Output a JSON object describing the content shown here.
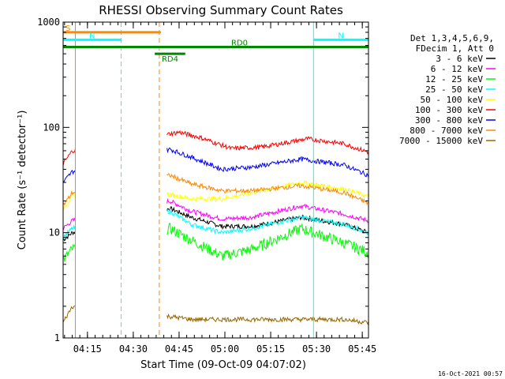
{
  "chart_data": {
    "type": "line",
    "title": "RHESSI Observing Summary Count Rates",
    "xlabel": "Start Time (09-Oct-09 04:07:02)",
    "ylabel": "Count Rate (s⁻¹ detector⁻¹)",
    "y_scale": "log",
    "ylim": [
      1,
      1000
    ],
    "xlim_minutes": [
      0,
      100
    ],
    "x_ticks": [
      {
        "minute": 7.97,
        "label": "04:15"
      },
      {
        "minute": 22.97,
        "label": "04:30"
      },
      {
        "minute": 37.97,
        "label": "04:45"
      },
      {
        "minute": 52.97,
        "label": "05:00"
      },
      {
        "minute": 67.97,
        "label": "05:15"
      },
      {
        "minute": 82.97,
        "label": "05:30"
      },
      {
        "minute": 97.97,
        "label": "05:45"
      }
    ],
    "y_tick_labels": [
      {
        "value": 1,
        "label": "1"
      },
      {
        "value": 10,
        "label": "10"
      },
      {
        "value": 100,
        "label": "100"
      },
      {
        "value": 1000,
        "label": "1000"
      }
    ],
    "legend_header": [
      "Det 1,3,4,5,6,9,",
      "FDecim 1, Att 0"
    ],
    "series": [
      {
        "name": "3 - 6 keV",
        "color": "#000000",
        "values": [
          [
            0,
            8.5
          ],
          [
            3,
            10
          ],
          [
            35,
            17
          ],
          [
            42,
            14
          ],
          [
            52,
            11.5
          ],
          [
            62,
            11.5
          ],
          [
            78,
            14
          ],
          [
            92,
            12
          ],
          [
            100,
            10
          ]
        ]
      },
      {
        "name": "6 - 12 keV",
        "color": "#ff00ff",
        "values": [
          [
            0,
            11
          ],
          [
            3,
            13
          ],
          [
            35,
            20
          ],
          [
            42,
            16
          ],
          [
            52,
            13.5
          ],
          [
            62,
            14
          ],
          [
            78,
            18
          ],
          [
            92,
            15
          ],
          [
            100,
            13
          ]
        ]
      },
      {
        "name": "12 - 25 keV",
        "color": "#00ff00",
        "values": [
          [
            0,
            5.5
          ],
          [
            3,
            7
          ],
          [
            35,
            11
          ],
          [
            42,
            8.5
          ],
          [
            52,
            6
          ],
          [
            62,
            7
          ],
          [
            78,
            11
          ],
          [
            92,
            8
          ],
          [
            100,
            6.5
          ]
        ]
      },
      {
        "name": "25 - 50 keV",
        "color": "#00ffff",
        "values": [
          [
            0,
            9
          ],
          [
            3,
            11
          ],
          [
            35,
            16
          ],
          [
            42,
            12
          ],
          [
            52,
            10
          ],
          [
            62,
            11
          ],
          [
            78,
            14
          ],
          [
            92,
            12
          ],
          [
            100,
            10
          ]
        ]
      },
      {
        "name": "50 - 100 keV",
        "color": "#ffff00",
        "values": [
          [
            0,
            17
          ],
          [
            3,
            22
          ],
          [
            35,
            23
          ],
          [
            42,
            21
          ],
          [
            52,
            21
          ],
          [
            62,
            24
          ],
          [
            78,
            30
          ],
          [
            92,
            26
          ],
          [
            100,
            22
          ]
        ]
      },
      {
        "name": "100 - 300 keV",
        "color": "#ff0000",
        "values": [
          [
            0,
            45
          ],
          [
            3,
            60
          ],
          [
            38,
            90
          ],
          [
            45,
            80
          ],
          [
            55,
            63
          ],
          [
            65,
            65
          ],
          [
            80,
            78
          ],
          [
            92,
            70
          ],
          [
            100,
            58
          ]
        ]
      },
      {
        "name": "300 - 800 keV",
        "color": "#0000ff",
        "values": [
          [
            0,
            30
          ],
          [
            3,
            38
          ],
          [
            35,
            62
          ],
          [
            42,
            52
          ],
          [
            52,
            40
          ],
          [
            62,
            42
          ],
          [
            78,
            50
          ],
          [
            92,
            44
          ],
          [
            100,
            35
          ]
        ]
      },
      {
        "name": "800 - 7000 keV",
        "color": "#ff8800",
        "values": [
          [
            0,
            18
          ],
          [
            3,
            24
          ],
          [
            35,
            35
          ],
          [
            42,
            29
          ],
          [
            52,
            25
          ],
          [
            62,
            25
          ],
          [
            78,
            28
          ],
          [
            92,
            24
          ],
          [
            100,
            19
          ]
        ]
      },
      {
        "name": "7000 - 15000 keV",
        "color": "#996600",
        "values": [
          [
            0,
            1.4
          ],
          [
            3,
            2
          ],
          [
            35,
            1.6
          ],
          [
            42,
            1.5
          ],
          [
            52,
            1.5
          ],
          [
            62,
            1.5
          ],
          [
            78,
            1.5
          ],
          [
            92,
            1.5
          ],
          [
            100,
            1.4
          ]
        ]
      }
    ],
    "flags": [
      {
        "label": "S",
        "color": "#ff8800",
        "start": 0,
        "end": 32,
        "value": 800
      },
      {
        "label": "N",
        "color": "#00ffff",
        "start": 0,
        "end": 19,
        "value": 680
      },
      {
        "label": "N",
        "color": "#00ffff",
        "start": 82,
        "end": 100,
        "value": 680
      },
      {
        "label": "RD0",
        "color": "#008800",
        "start": 0,
        "end": 100,
        "value": 580
      },
      {
        "label": "RD4",
        "color": "#008800",
        "start": 30,
        "end": 40,
        "value": 500
      }
    ],
    "vertical_markers": [
      {
        "minute": 0,
        "color": "#00ffff",
        "style": "solid"
      },
      {
        "minute": 4,
        "color": "#ff8800",
        "style": "solid"
      },
      {
        "minute": 19,
        "color": "#00ffff",
        "style": "dashed"
      },
      {
        "minute": 31.5,
        "color": "#ff8800",
        "style": "dashed"
      },
      {
        "minute": 82,
        "color": "#00ffff",
        "style": "solid"
      },
      {
        "minute": 100,
        "color": "#00ffff",
        "style": "dashed"
      }
    ],
    "gap": [
      4,
      34
    ],
    "grid": false,
    "legend_position": "top-right"
  },
  "stamp": "16-Oct-2021 00:57"
}
